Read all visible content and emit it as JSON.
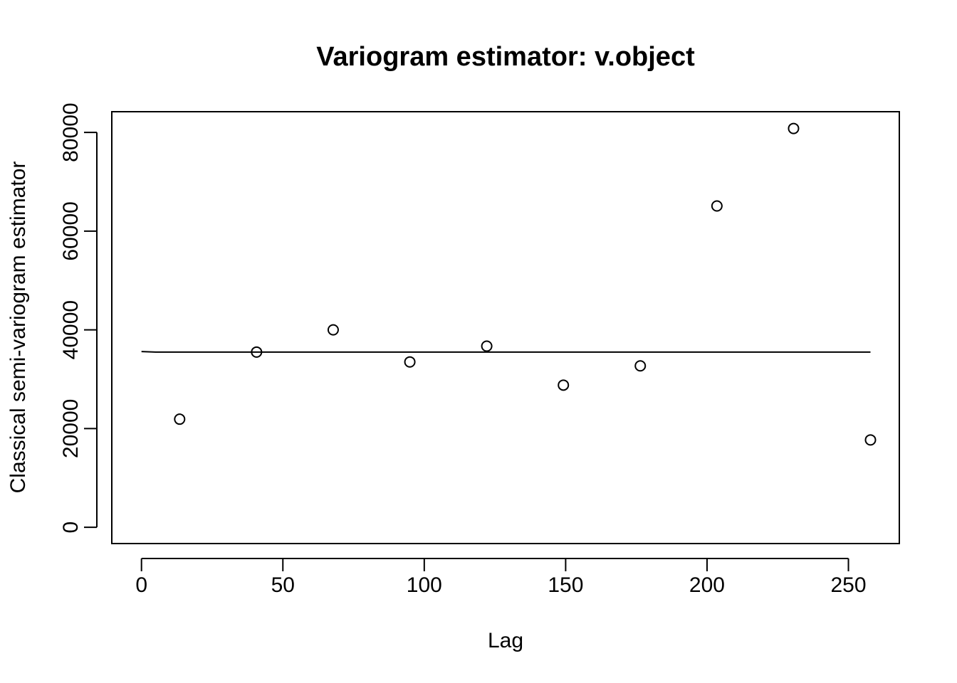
{
  "chart_data": {
    "type": "scatter",
    "title": "Variogram estimator: v.object",
    "xlabel": "Lag",
    "ylabel": "Classical semi-variogram estimator",
    "xlim": [
      -10.5,
      268
    ],
    "ylim": [
      -3300,
      84200
    ],
    "x_ticks": [
      0,
      50,
      100,
      150,
      200,
      250
    ],
    "y_ticks": [
      0,
      20000,
      40000,
      60000,
      80000
    ],
    "x_tick_labels": [
      "0",
      "50",
      "100",
      "150",
      "200",
      "250"
    ],
    "y_tick_labels": [
      "0",
      "20000",
      "40000",
      "60000",
      "80000"
    ],
    "grid": false,
    "legend": "none",
    "points": {
      "x": [
        13.5,
        40.7,
        67.8,
        94.9,
        122.1,
        149.2,
        176.4,
        203.5,
        230.6,
        257.8
      ],
      "y": [
        21900,
        35500,
        40000,
        33500,
        36700,
        28800,
        32700,
        65100,
        80800,
        17700
      ]
    },
    "fitted_line": {
      "x": [
        0,
        5,
        257.8
      ],
      "y": [
        35600,
        35500,
        35500
      ]
    }
  }
}
